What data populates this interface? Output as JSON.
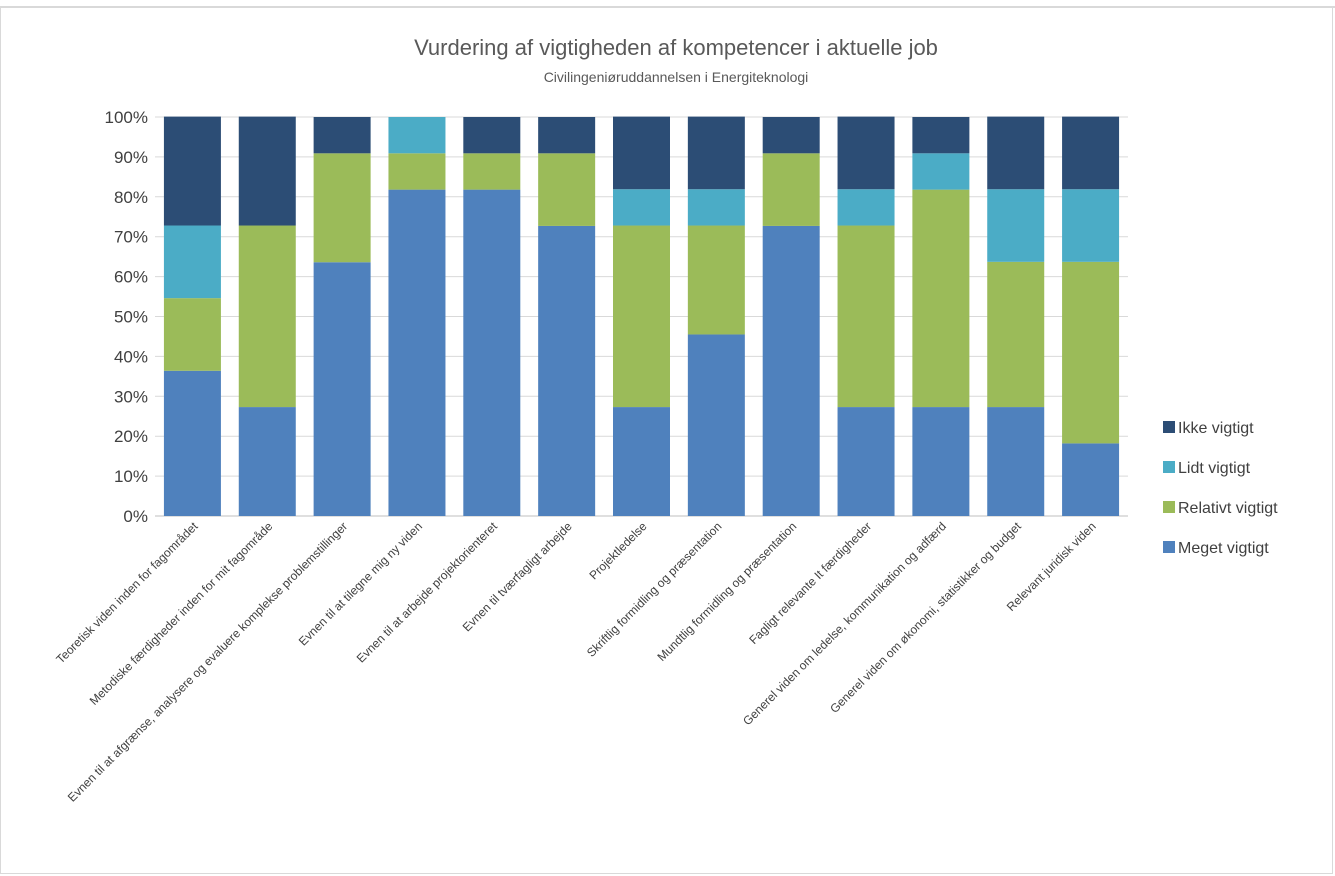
{
  "chart_data": {
    "type": "bar",
    "stacked": true,
    "title": "Vurdering af vigtigheden af kompetencer i aktuelle job",
    "subtitle": "Civilingeniøruddannelsen i Energiteknologi",
    "xlabel": "",
    "ylabel": "",
    "ylim": [
      0,
      100
    ],
    "yticks": [
      "0%",
      "10%",
      "20%",
      "30%",
      "40%",
      "50%",
      "60%",
      "70%",
      "80%",
      "90%",
      "100%"
    ],
    "grid": true,
    "legend_position": "right",
    "categories": [
      "Teoretisk viden inden for fagområdet",
      "Metodiske færdigheder inden for mit fagområde",
      "Evnen til at afgrænse, analysere og evaluere komplekse problemstillinger",
      "Evnen til at tilegne mig ny viden",
      "Evnen til at arbejde projektorienteret",
      "Evnen til tværfagligt arbejde",
      "Projektledelse",
      "Skriftlig formidling og præsentation",
      "Mundtlig formidling og præsentation",
      "Fagligt relevante It færdigheder",
      "Generel viden om ledelse, kommunikation og adfærd",
      "Generel viden om økonomi, statistikker og budget",
      "Relevant juridisk viden"
    ],
    "series": [
      {
        "name": "Meget vigtigt",
        "color": "#4f81bd",
        "values": [
          36.4,
          27.3,
          63.6,
          81.8,
          81.8,
          72.7,
          27.3,
          45.5,
          72.7,
          27.3,
          27.3,
          27.3,
          18.2
        ]
      },
      {
        "name": "Relativt vigtigt",
        "color": "#9bbb59",
        "values": [
          18.2,
          45.5,
          27.3,
          9.1,
          9.1,
          18.2,
          45.5,
          27.3,
          18.2,
          45.5,
          54.5,
          36.4,
          45.5
        ]
      },
      {
        "name": "Lidt vigtigt",
        "color": "#4bacc6",
        "values": [
          18.2,
          0,
          0,
          9.1,
          0,
          0,
          9.1,
          9.1,
          0,
          9.1,
          9.1,
          18.2,
          18.2
        ]
      },
      {
        "name": "Ikke vigtigt",
        "color": "#2c4d75",
        "values": [
          27.3,
          27.3,
          9.1,
          0,
          9.1,
          9.1,
          18.2,
          18.2,
          9.1,
          18.2,
          9.1,
          18.2,
          18.2
        ]
      }
    ],
    "legend_order": [
      "Ikke vigtigt",
      "Lidt vigtigt",
      "Relativt vigtigt",
      "Meget vigtigt"
    ]
  }
}
